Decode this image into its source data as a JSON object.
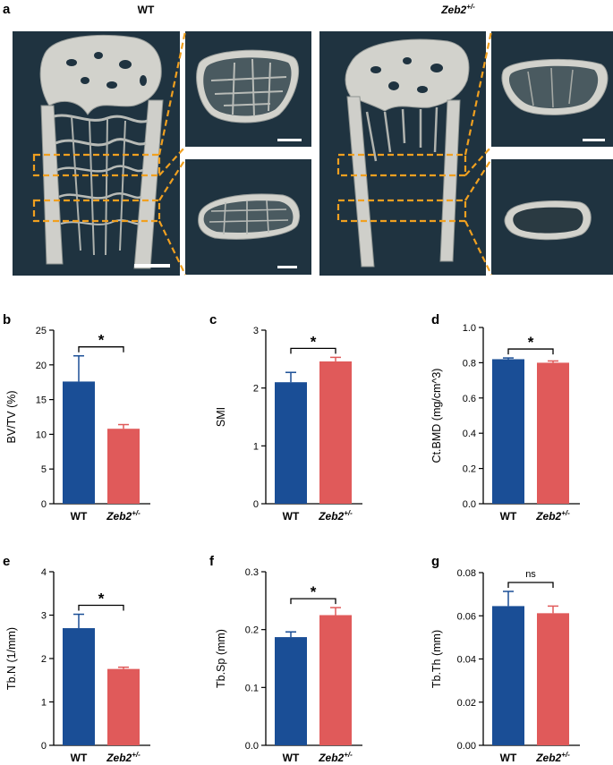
{
  "panel_a": {
    "letter": "a",
    "groups": [
      {
        "title": "WT",
        "title_italic": false
      },
      {
        "title": "Zeb2",
        "title_sup": "+/-",
        "title_italic": true
      }
    ]
  },
  "colors": {
    "wt": "#1a4e96",
    "zeb2": "#e05a5a",
    "scan_bg": "#1f3340",
    "bone": "#d2d2cc",
    "bone_dark": "#8d9390",
    "dashed": "#f0a020"
  },
  "chart_data": [
    {
      "letter": "b",
      "type": "bar",
      "categories": [
        "WT",
        "Zeb2"
      ],
      "category_sup": [
        "",
        "+/-"
      ],
      "values": [
        17.6,
        10.8
      ],
      "errors": [
        3.7,
        0.6
      ],
      "ylabel": "BV/TV (%)",
      "ylim": [
        0,
        25
      ],
      "yticks": [
        0,
        5,
        10,
        15,
        20,
        25
      ],
      "ytick_labels": [
        "0",
        "5",
        "10",
        "15",
        "20",
        "25"
      ],
      "significance": "*"
    },
    {
      "letter": "c",
      "type": "bar",
      "categories": [
        "WT",
        "Zeb2"
      ],
      "category_sup": [
        "",
        "+/-"
      ],
      "values": [
        2.1,
        2.46
      ],
      "errors": [
        0.17,
        0.07
      ],
      "ylabel": "SMI",
      "ylim": [
        0,
        3
      ],
      "yticks": [
        0,
        1,
        2,
        3
      ],
      "ytick_labels": [
        "0",
        "1",
        "2",
        "3"
      ],
      "significance": "*"
    },
    {
      "letter": "d",
      "type": "bar",
      "categories": [
        "WT",
        "Zeb2"
      ],
      "category_sup": [
        "",
        "+/-"
      ],
      "values": [
        0.82,
        0.8
      ],
      "errors": [
        0.007,
        0.01
      ],
      "ylabel": "Ct.BMD (mg/cm^3)",
      "ylim": [
        0,
        1.0
      ],
      "yticks": [
        0,
        0.2,
        0.4,
        0.6,
        0.8,
        1.0
      ],
      "ytick_labels": [
        "0.0",
        "0.2",
        "0.4",
        "0.6",
        "0.8",
        "1.0"
      ],
      "significance": "*"
    },
    {
      "letter": "e",
      "type": "bar",
      "categories": [
        "WT",
        "Zeb2"
      ],
      "category_sup": [
        "",
        "+/-"
      ],
      "values": [
        2.7,
        1.76
      ],
      "errors": [
        0.32,
        0.04
      ],
      "ylabel": "Tb.N (1/mm)",
      "ylim": [
        0,
        4
      ],
      "yticks": [
        0,
        1,
        2,
        3,
        4
      ],
      "ytick_labels": [
        "0",
        "1",
        "2",
        "3",
        "4"
      ],
      "significance": "*"
    },
    {
      "letter": "f",
      "type": "bar",
      "categories": [
        "WT",
        "Zeb2"
      ],
      "category_sup": [
        "",
        "+/-"
      ],
      "values": [
        0.187,
        0.225
      ],
      "errors": [
        0.009,
        0.013
      ],
      "ylabel": "Tb.Sp (mm)",
      "ylim": [
        0,
        0.3
      ],
      "yticks": [
        0,
        0.1,
        0.2,
        0.3
      ],
      "ytick_labels": [
        "0.0",
        "0.1",
        "0.2",
        "0.3"
      ],
      "significance": "*"
    },
    {
      "letter": "g",
      "type": "bar",
      "categories": [
        "WT",
        "Zeb2"
      ],
      "category_sup": [
        "",
        "+/-"
      ],
      "values": [
        0.0645,
        0.0612
      ],
      "errors": [
        0.0068,
        0.0033
      ],
      "ylabel": "Tb.Th (mm)",
      "ylim": [
        0,
        0.08
      ],
      "yticks": [
        0,
        0.02,
        0.04,
        0.06,
        0.08
      ],
      "ytick_labels": [
        "0.00",
        "0.02",
        "0.04",
        "0.06",
        "0.08"
      ],
      "significance": "ns"
    }
  ]
}
